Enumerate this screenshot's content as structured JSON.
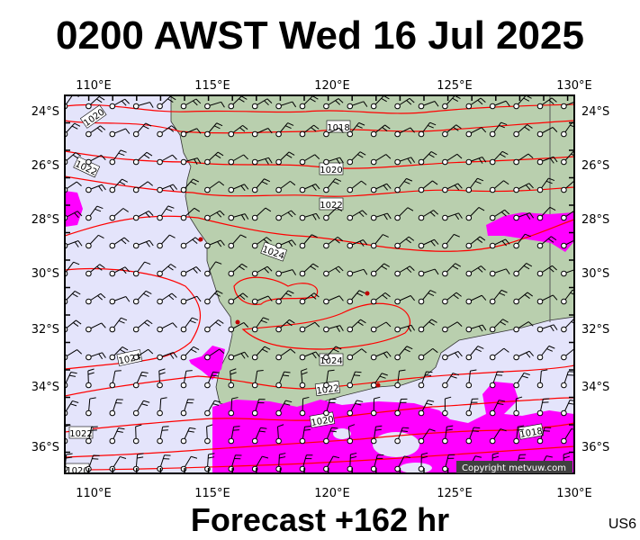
{
  "title": "0200 AWST Wed 16 Jul 2025",
  "footer": "Forecast +162 hr",
  "model_code": "US6",
  "copyright": "Copyright metvuw.com",
  "map": {
    "lon_labels": [
      "110°E",
      "115°E",
      "120°E",
      "125°E",
      "130°E"
    ],
    "lat_labels": [
      "24°S",
      "26°S",
      "28°S",
      "30°S",
      "32°S",
      "34°S",
      "36°S"
    ],
    "isobar_labels": [
      "1020",
      "1018",
      "1022",
      "1020",
      "1022",
      "1024",
      "1024",
      "1024",
      "1022",
      "1020",
      "1018",
      "1022",
      "1020"
    ]
  },
  "colors": {
    "ocean": "#e4e4fb",
    "land": "#b9cfae",
    "isobar": "#ff0000",
    "rain": "#ff00ff",
    "wind": "#000000"
  }
}
